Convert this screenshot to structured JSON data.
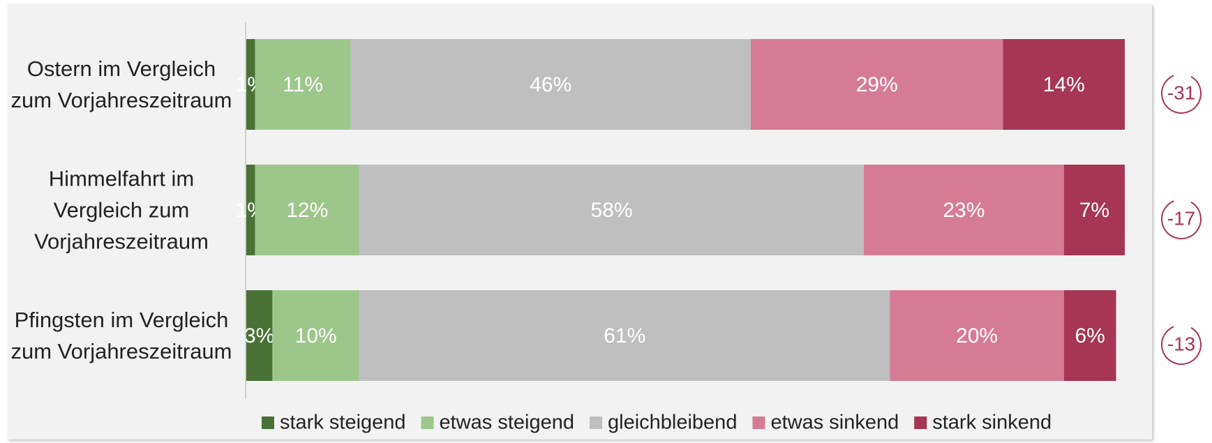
{
  "chart_data": {
    "type": "stacked-bar-horizontal",
    "categories": [
      "Ostern im Vergleich zum Vorjahreszeitraum",
      "Himmelfahrt im Vergleich zum Vorjahreszeitraum",
      "Pfingsten im Vergleich zum Vorjahreszeitraum"
    ],
    "series": [
      {
        "name": "stark steigend",
        "color": "#4a7236",
        "values": [
          1,
          1,
          3
        ],
        "value_labels": [
          "1%",
          "1%",
          "3%"
        ]
      },
      {
        "name": "etwas steigend",
        "color": "#9dc68b",
        "values": [
          11,
          12,
          10
        ],
        "value_labels": [
          "11%",
          "12%",
          "10%"
        ]
      },
      {
        "name": "gleichbleibend",
        "color": "#bfbfbf",
        "values": [
          46,
          58,
          61
        ],
        "value_labels": [
          "46%",
          "58%",
          "61%"
        ]
      },
      {
        "name": "etwas sinkend",
        "color": "#d67b96",
        "values": [
          29,
          23,
          20
        ],
        "value_labels": [
          "29%",
          "23%",
          "20%"
        ]
      },
      {
        "name": "stark sinkend",
        "color": "#a63556",
        "values": [
          14,
          7,
          6
        ],
        "value_labels": [
          "14%",
          "7%",
          "6%"
        ]
      }
    ],
    "scores": [
      -31,
      -17,
      -13
    ],
    "legend": "bottom"
  }
}
